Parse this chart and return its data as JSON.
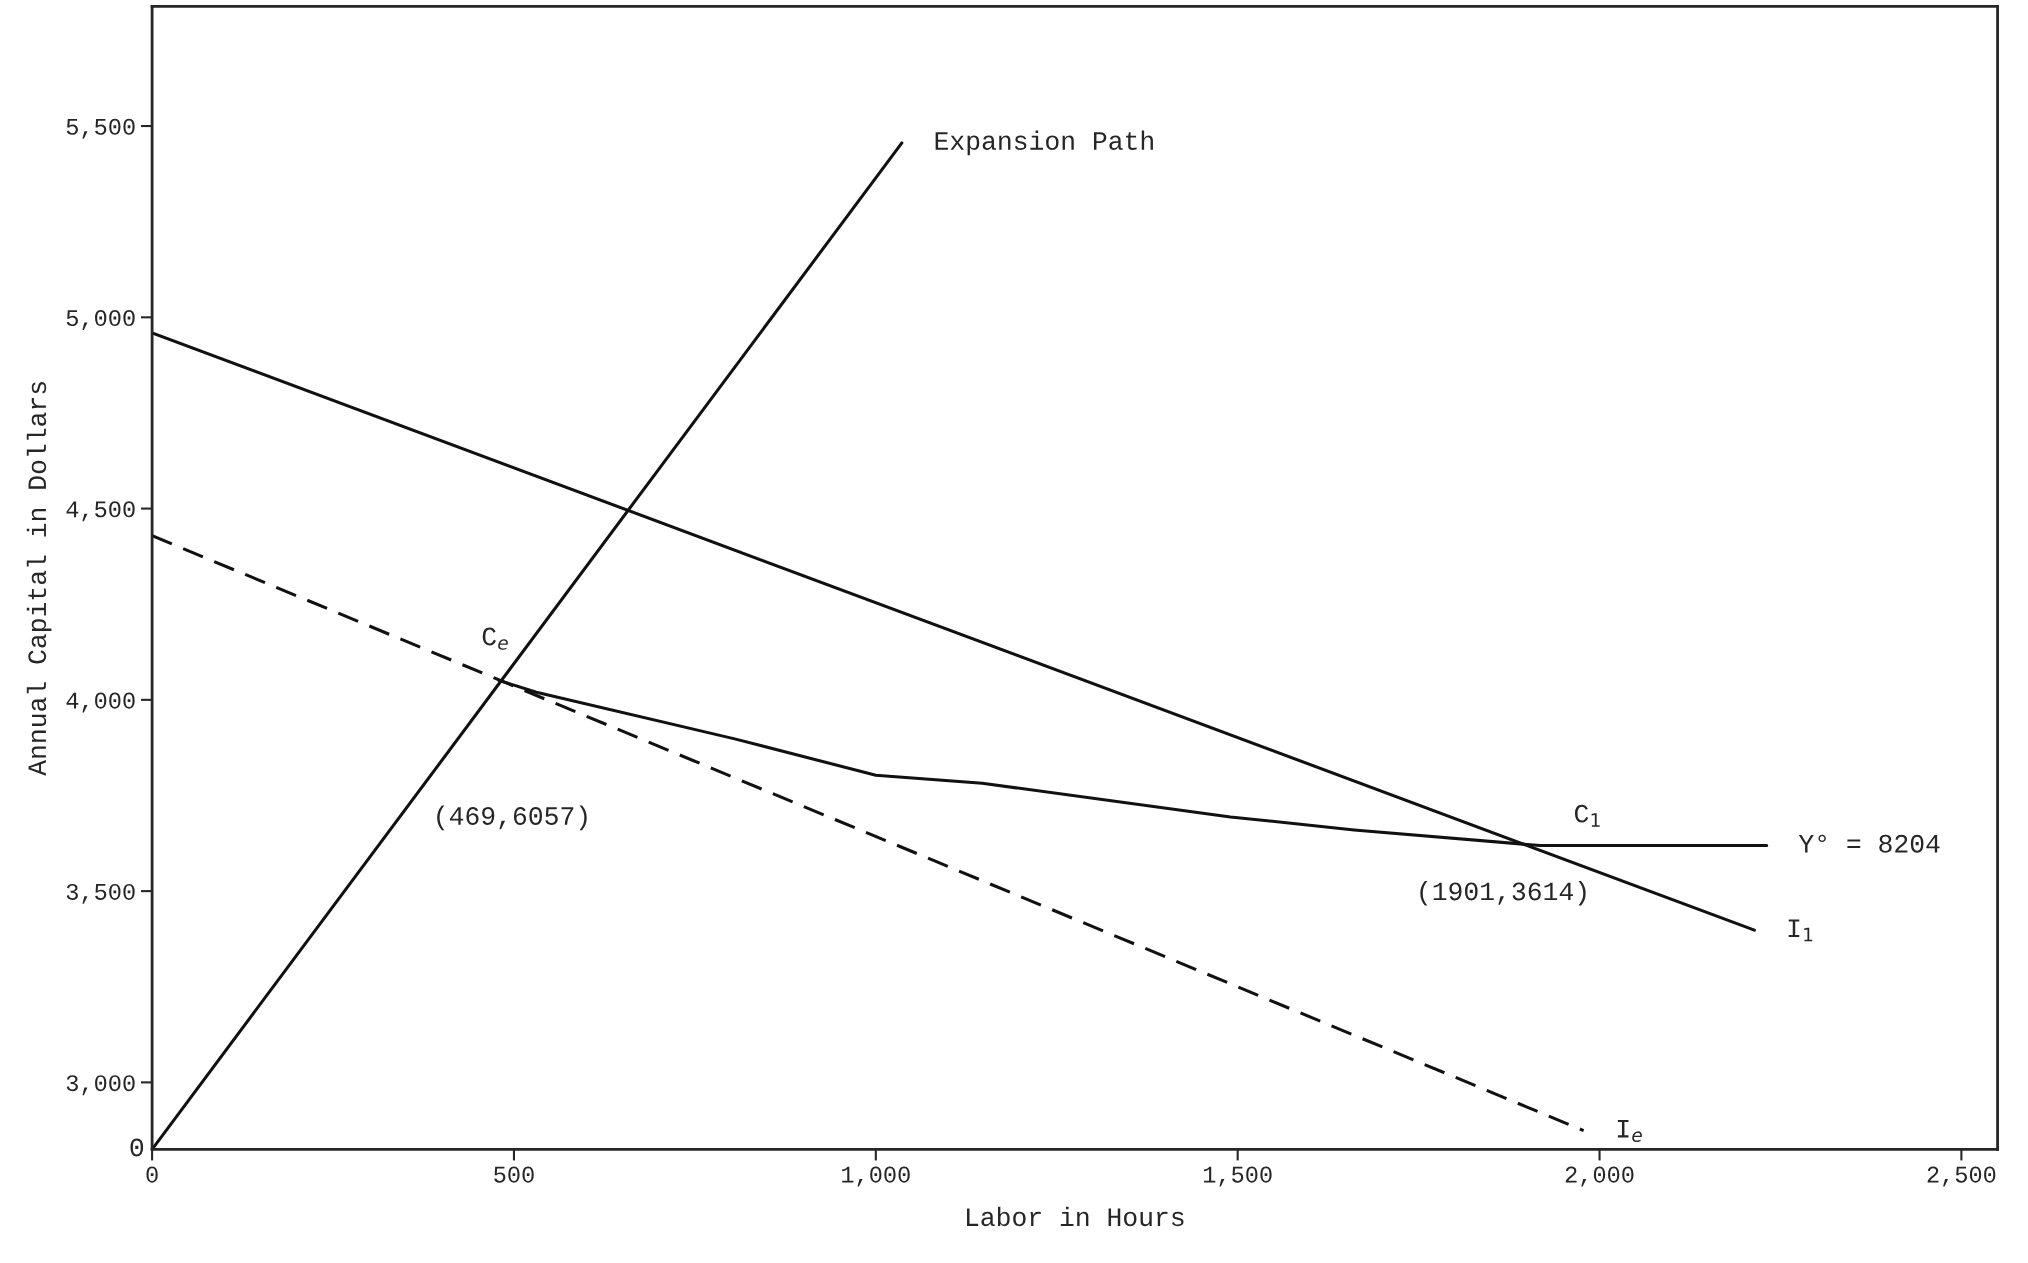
{
  "chart_data": {
    "type": "line",
    "xlabel": "Labor in Hours",
    "ylabel": "Annual Capital in Dollars",
    "xlim": [
      0,
      2550
    ],
    "ylim": [
      2825,
      5813
    ],
    "xticks": [
      0,
      500,
      {
        "value": 1000,
        "label": "1,000"
      },
      {
        "value": 1500,
        "label": "1,500"
      },
      {
        "value": 2000,
        "label": "2,000"
      },
      {
        "value": 2500,
        "label": "2,500"
      }
    ],
    "yticks": [
      {
        "value": 3000,
        "label": "3,000"
      },
      {
        "value": 3500,
        "label": "3,500"
      },
      {
        "value": 4000,
        "label": "4,000"
      },
      {
        "value": 4500,
        "label": "4,500"
      },
      {
        "value": 5000,
        "label": "5,000"
      },
      {
        "value": 5500,
        "label": "5,500"
      }
    ],
    "grid": false,
    "legend": false,
    "marker": "none",
    "series": [
      {
        "name": "Expansion Path",
        "color": "#111111",
        "line_style": "solid",
        "x": [
          0,
          1036
        ],
        "values": [
          2825,
          5456
        ]
      },
      {
        "name": "I$_{1}$",
        "color": "#111111",
        "line_style": "solid",
        "x": [
          0,
          2214
        ],
        "values": [
          4959,
          3398
        ]
      },
      {
        "name": "I$_{e}$",
        "color": "#111111",
        "line_style": "dashed",
        "x": [
          0,
          1978
        ],
        "values": [
          4429,
          2874
        ]
      },
      {
        "name": "Y° = 8204",
        "color": "#111111",
        "line_style": "solid",
        "x": [
          479,
          531,
          805,
          1000,
          1147,
          1490,
          1661,
          1918,
          2003,
          2231
        ],
        "values": [
          4051,
          4020,
          3898,
          3803,
          3782,
          3694,
          3660,
          3619,
          3619,
          3619
        ]
      }
    ],
    "annotations": [
      "C$_{e}$",
      "(469,6057)",
      "C$_{1}$",
      "(1901,3614)",
      "0"
    ]
  }
}
